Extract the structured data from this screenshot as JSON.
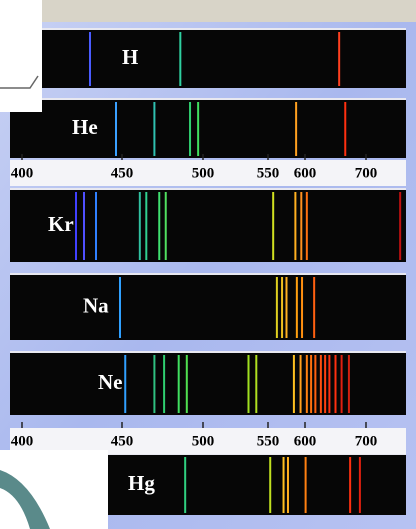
{
  "axes": [
    [
      400,
      450,
      500,
      550,
      600,
      700
    ],
    [
      400,
      450,
      500,
      550,
      600,
      700
    ]
  ],
  "spectra": [
    {
      "label": "H",
      "lines": [
        {
          "nm": 434,
          "color": "#4a5cff"
        },
        {
          "nm": 486,
          "color": "#2fd0a0"
        },
        {
          "nm": 656,
          "color": "#ff4020"
        }
      ]
    },
    {
      "label": "He",
      "lines": [
        {
          "nm": 447,
          "color": "#3aa0ff"
        },
        {
          "nm": 470,
          "color": "#30c0b0"
        },
        {
          "nm": 492,
          "color": "#30d070"
        },
        {
          "nm": 497,
          "color": "#40e060"
        },
        {
          "nm": 588,
          "color": "#ffa020"
        },
        {
          "nm": 666,
          "color": "#ff3010"
        }
      ]
    },
    {
      "label": "Kr",
      "lines": [
        {
          "nm": 427,
          "color": "#4040ff"
        },
        {
          "nm": 431,
          "color": "#5050ff"
        },
        {
          "nm": 437,
          "color": "#3080ff"
        },
        {
          "nm": 461,
          "color": "#30c0a0"
        },
        {
          "nm": 465,
          "color": "#30d090"
        },
        {
          "nm": 473,
          "color": "#40e070"
        },
        {
          "nm": 477,
          "color": "#50e060"
        },
        {
          "nm": 557,
          "color": "#d0e020"
        },
        {
          "nm": 587,
          "color": "#ffb020"
        },
        {
          "nm": 595,
          "color": "#ff9020"
        },
        {
          "nm": 603,
          "color": "#ff7010"
        },
        {
          "nm": 756,
          "color": "#c01010"
        }
      ]
    },
    {
      "label": "Na",
      "lines": [
        {
          "nm": 449,
          "color": "#30a0ff"
        },
        {
          "nm": 562,
          "color": "#e0d020"
        },
        {
          "nm": 569,
          "color": "#f0c020"
        },
        {
          "nm": 575,
          "color": "#ffb020"
        },
        {
          "nm": 589,
          "color": "#ffa010"
        },
        {
          "nm": 596,
          "color": "#ff9010"
        },
        {
          "nm": 615,
          "color": "#ff6010"
        }
      ]
    },
    {
      "label": "Ne",
      "lines": [
        {
          "nm": 452,
          "color": "#30a0ff"
        },
        {
          "nm": 470,
          "color": "#30c080"
        },
        {
          "nm": 476,
          "color": "#30d070"
        },
        {
          "nm": 485,
          "color": "#40e060"
        },
        {
          "nm": 490,
          "color": "#50e050"
        },
        {
          "nm": 535,
          "color": "#a0e020"
        },
        {
          "nm": 541,
          "color": "#b0e020"
        },
        {
          "nm": 585,
          "color": "#ffc020"
        },
        {
          "nm": 594,
          "color": "#ffa020"
        },
        {
          "nm": 603,
          "color": "#ff8010"
        },
        {
          "nm": 610,
          "color": "#ff7010"
        },
        {
          "nm": 617,
          "color": "#ff6010"
        },
        {
          "nm": 626,
          "color": "#ff5010"
        },
        {
          "nm": 633,
          "color": "#ff4010"
        },
        {
          "nm": 640,
          "color": "#ff3010"
        },
        {
          "nm": 650,
          "color": "#ff3010"
        },
        {
          "nm": 660,
          "color": "#e02010"
        },
        {
          "nm": 672,
          "color": "#d02010"
        }
      ]
    },
    {
      "label": "Hg",
      "lines": [
        {
          "nm": 489,
          "color": "#30d080"
        },
        {
          "nm": 553,
          "color": "#c0e020"
        },
        {
          "nm": 571,
          "color": "#ffc020"
        },
        {
          "nm": 577,
          "color": "#ffb020"
        },
        {
          "nm": 601,
          "color": "#ff8010"
        },
        {
          "nm": 674,
          "color": "#ff3010"
        },
        {
          "nm": 690,
          "color": "#e02010"
        }
      ]
    }
  ]
}
